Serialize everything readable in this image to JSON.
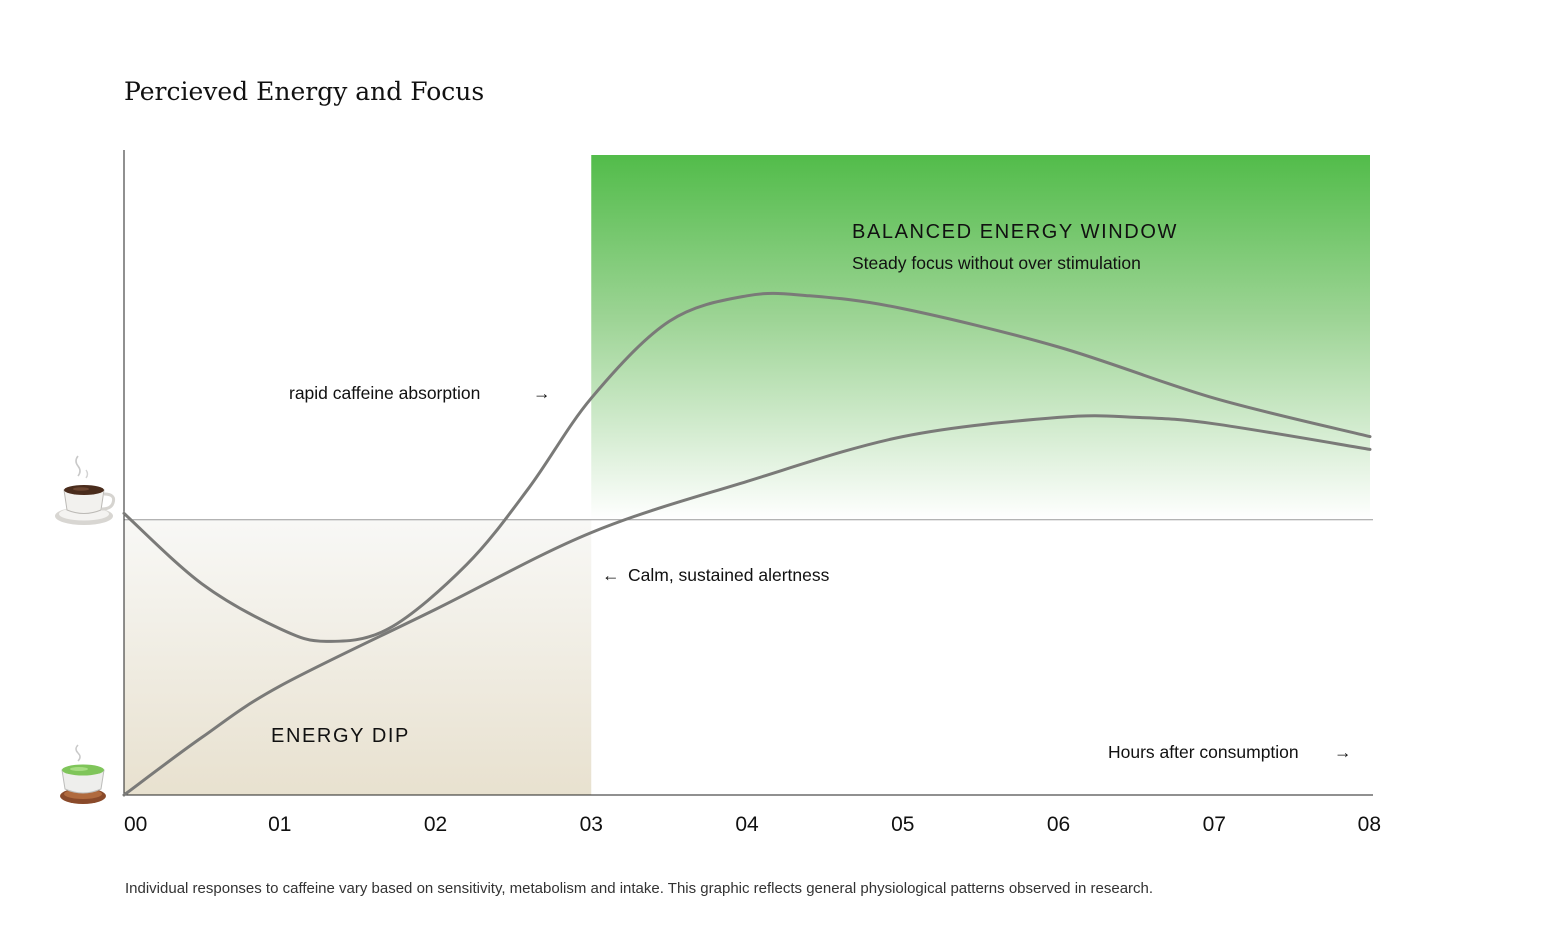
{
  "chart_data": {
    "type": "line",
    "title": "Percieved Energy and Focus",
    "xlabel": "Hours after consumption",
    "x_ticks": [
      "00",
      "01",
      "02",
      "03",
      "04",
      "05",
      "06",
      "07",
      "08"
    ],
    "xlim": [
      0,
      8
    ],
    "ylim": [
      0,
      1
    ],
    "baseline": 0.43,
    "y_axis_markers": [
      {
        "name": "coffee",
        "icon": "coffee-cup-icon",
        "value": 0.43
      },
      {
        "name": "green tea",
        "icon": "green-tea-cup-icon",
        "value": 0
      }
    ],
    "series": [
      {
        "name": "coffee",
        "x": [
          0,
          0.5,
          1,
          1.3,
          1.7,
          2.2,
          2.6,
          3,
          3.5,
          4,
          4.4,
          5,
          6,
          7,
          8
        ],
        "y": [
          0.44,
          0.33,
          0.26,
          0.24,
          0.26,
          0.36,
          0.48,
          0.62,
          0.74,
          0.78,
          0.78,
          0.76,
          0.7,
          0.62,
          0.56
        ]
      },
      {
        "name": "matcha",
        "x": [
          0,
          0.5,
          1,
          2,
          3,
          4,
          5,
          6,
          6.5,
          7,
          8
        ],
        "y": [
          0,
          0.09,
          0.17,
          0.29,
          0.41,
          0.49,
          0.56,
          0.59,
          0.59,
          0.58,
          0.54
        ]
      }
    ],
    "regions": [
      {
        "name": "energy-dip",
        "label": "ENERGY DIP",
        "x_range": [
          0,
          3
        ],
        "y_range": [
          0,
          0.43
        ],
        "color": "#e8e1cf"
      },
      {
        "name": "balanced-window",
        "label": "BALANCED ENERGY WINDOW",
        "sublabel": "Steady focus without over stimulation",
        "x_range": [
          3,
          8
        ],
        "y_range": [
          0.43,
          1
        ],
        "color": "#52bc4a"
      }
    ],
    "annotations": [
      {
        "name": "rapid-caffeine",
        "text": "rapid caffeine absorption",
        "arrow": "→"
      },
      {
        "name": "calm-alertness",
        "text": "Calm, sustained alertness",
        "arrow": "←"
      },
      {
        "name": "x-axis-label",
        "text": "Hours after consumption",
        "arrow": "→"
      }
    ],
    "footnote": "Individual responses to caffeine vary based on sensitivity, metabolism and intake. This graphic reflects general physiological patterns observed in research."
  },
  "colors": {
    "curve": "#7a7a78",
    "axis": "#222222",
    "baseline": "#9a9a9a",
    "green": "#52bc4a",
    "beige": "#e8e1cf"
  }
}
